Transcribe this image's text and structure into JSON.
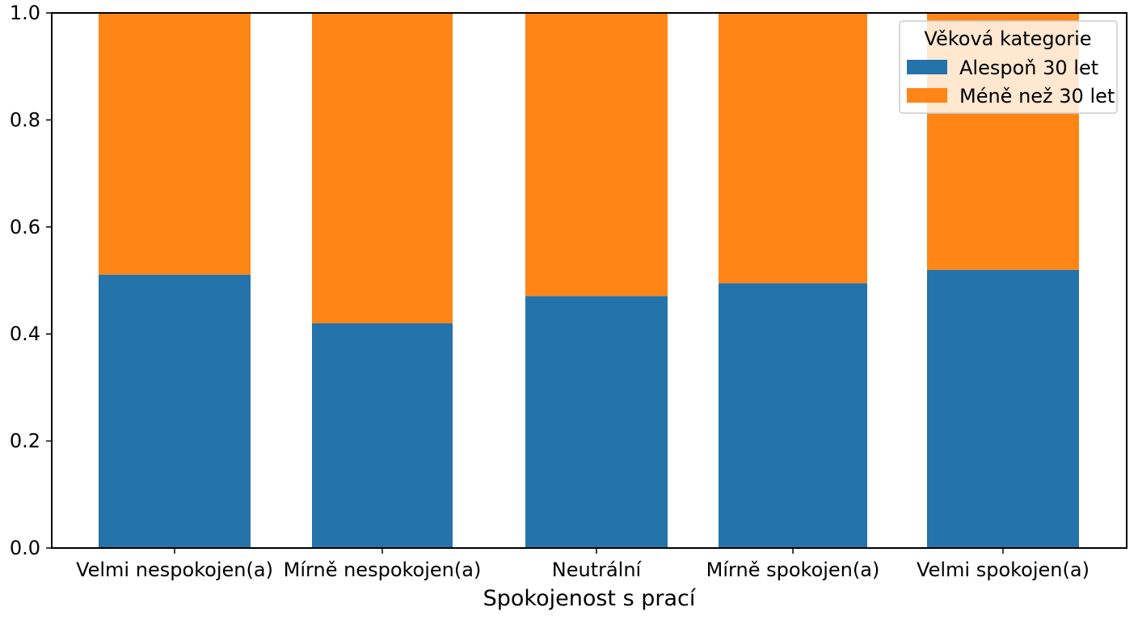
{
  "chart_data": {
    "type": "bar",
    "stacked": true,
    "title": "",
    "xlabel": "Spokojenost s prací",
    "ylabel": "",
    "ylim": [
      0,
      1.0
    ],
    "yticks": [
      "0.0",
      "0.2",
      "0.4",
      "0.6",
      "0.8",
      "1.0"
    ],
    "categories": [
      "Velmi nespokojen(a)",
      "Mírně nespokojen(a)",
      "Neutrální",
      "Mírně spokojen(a)",
      "Velmi spokojen(a)"
    ],
    "series": [
      {
        "name": "Alespoň 30 let",
        "color": "#2473aa",
        "values": [
          0.511,
          0.42,
          0.471,
          0.495,
          0.52
        ]
      },
      {
        "name": "Méně než 30 let",
        "color": "#fe8516",
        "values": [
          0.489,
          0.58,
          0.529,
          0.505,
          0.48
        ]
      }
    ],
    "legend": {
      "title": "Věková kategorie",
      "position": "top-right"
    },
    "grid": false
  }
}
